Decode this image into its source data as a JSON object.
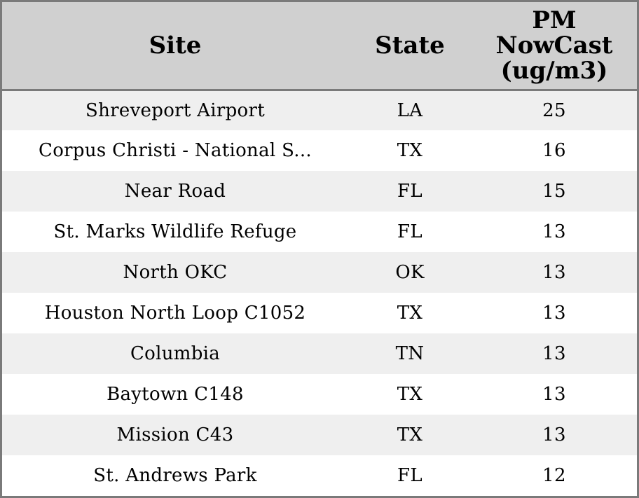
{
  "chart_data": {
    "type": "table",
    "columns": [
      "Site",
      "State",
      "PM NowCast (ug/m3)"
    ],
    "rows": [
      {
        "site": "Shreveport Airport",
        "state": "LA",
        "pm": 25
      },
      {
        "site": "Corpus Christi - National S...",
        "state": "TX",
        "pm": 16
      },
      {
        "site": "Near Road",
        "state": "FL",
        "pm": 15
      },
      {
        "site": "St. Marks Wildlife Refuge",
        "state": "FL",
        "pm": 13
      },
      {
        "site": "North OKC",
        "state": "OK",
        "pm": 13
      },
      {
        "site": "Houston North Loop C1052",
        "state": "TX",
        "pm": 13
      },
      {
        "site": "Columbia",
        "state": "TN",
        "pm": 13
      },
      {
        "site": "Baytown C148",
        "state": "TX",
        "pm": 13
      },
      {
        "site": "Mission C43",
        "state": "TX",
        "pm": 13
      },
      {
        "site": "St. Andrews Park",
        "state": "FL",
        "pm": 12
      }
    ]
  },
  "colors": {
    "header_bg": "#d0d0d0",
    "row_alt_bg": "#efefef",
    "row_bg": "#ffffff",
    "border": "#7a7a7a"
  }
}
